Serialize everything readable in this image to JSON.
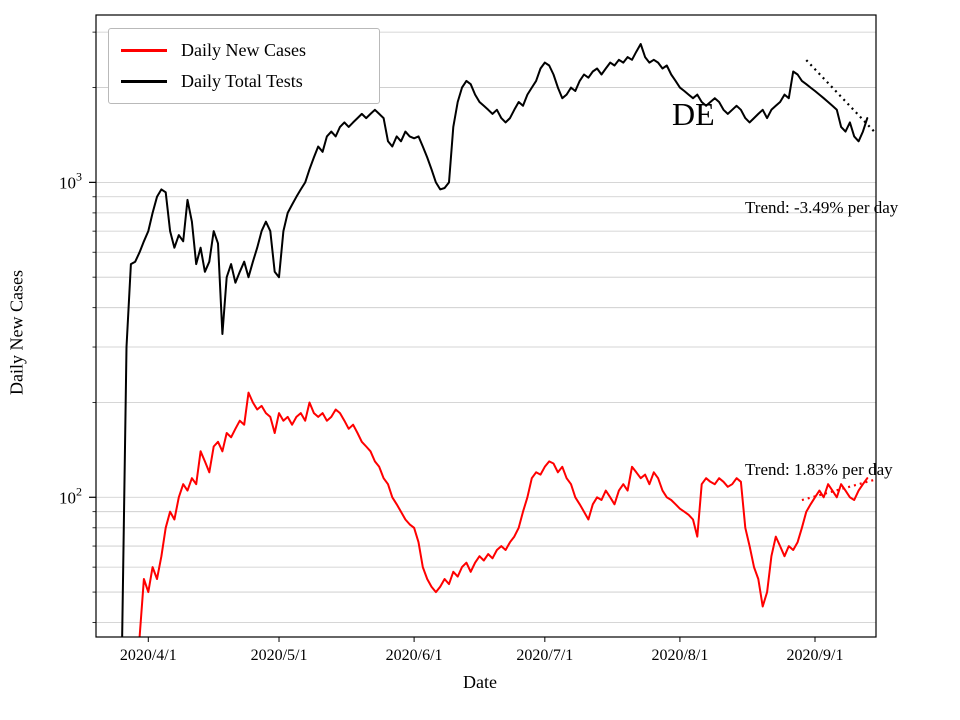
{
  "annotations": {
    "country_label": "DE",
    "trend_total_tests": "Trend: -3.49% per day",
    "trend_new_cases": "Trend: 1.83% per day"
  },
  "chart_data": {
    "type": "line",
    "title": "",
    "xlabel": "Date",
    "ylabel": "Daily New Cases",
    "yscale": "log",
    "ylim": [
      36,
      3400
    ],
    "x_range_days": [
      -6,
      173
    ],
    "x_start_date": "2020/3/26",
    "grid": "horizontal-only",
    "legend_position": "upper-left",
    "gridlines": [
      40,
      50,
      60,
      70,
      80,
      90,
      100,
      200,
      300,
      400,
      500,
      600,
      700,
      800,
      900,
      1000,
      2000,
      3000
    ],
    "y_ticks": [
      {
        "value": 1000,
        "base": "10",
        "exp": "3"
      },
      {
        "value": 100,
        "base": "10",
        "exp": "2"
      }
    ],
    "x_ticks": [
      {
        "day": 6,
        "label": "2020/4/1"
      },
      {
        "day": 36,
        "label": "2020/5/1"
      },
      {
        "day": 67,
        "label": "2020/6/1"
      },
      {
        "day": 97,
        "label": "2020/7/1"
      },
      {
        "day": 128,
        "label": "2020/8/1"
      },
      {
        "day": 159,
        "label": "2020/9/1"
      }
    ],
    "series": [
      {
        "name": "Daily New Cases",
        "color": "#ff0000",
        "start_day": 4,
        "values": [
          36,
          55,
          50,
          60,
          55,
          65,
          80,
          90,
          85,
          100,
          110,
          105,
          115,
          110,
          140,
          130,
          120,
          145,
          150,
          140,
          160,
          155,
          165,
          175,
          170,
          215,
          200,
          190,
          195,
          185,
          180,
          160,
          185,
          175,
          180,
          170,
          180,
          185,
          175,
          200,
          185,
          180,
          185,
          175,
          180,
          190,
          185,
          175,
          165,
          170,
          160,
          150,
          145,
          140,
          130,
          125,
          115,
          110,
          100,
          95,
          90,
          85,
          82,
          80,
          72,
          60,
          55,
          52,
          50,
          52,
          55,
          53,
          58,
          56,
          60,
          62,
          58,
          62,
          65,
          63,
          66,
          64,
          68,
          70,
          68,
          72,
          75,
          80,
          90,
          100,
          115,
          120,
          118,
          125,
          130,
          128,
          120,
          125,
          115,
          110,
          100,
          95,
          90,
          85,
          95,
          100,
          98,
          105,
          100,
          95,
          105,
          110,
          105,
          125,
          120,
          115,
          118,
          110,
          120,
          115,
          105,
          100,
          98,
          95,
          92,
          90,
          88,
          85,
          75,
          110,
          115,
          112,
          110,
          115,
          112,
          108,
          110,
          115,
          112,
          80,
          70,
          60,
          55,
          45,
          50,
          65,
          75,
          70,
          65,
          70,
          68,
          72,
          80,
          90,
          95,
          100,
          105,
          100,
          110,
          105,
          100,
          110,
          105,
          100,
          98,
          105,
          110,
          115
        ]
      },
      {
        "name": "Daily Total Tests",
        "color": "#000000",
        "start_day": 0,
        "values": [
          35,
          300,
          550,
          560,
          600,
          650,
          700,
          800,
          900,
          950,
          930,
          700,
          620,
          680,
          650,
          880,
          750,
          550,
          620,
          520,
          560,
          700,
          640,
          330,
          500,
          550,
          480,
          520,
          560,
          500,
          560,
          620,
          700,
          750,
          700,
          520,
          500,
          700,
          800,
          850,
          900,
          950,
          1000,
          1100,
          1200,
          1300,
          1250,
          1400,
          1450,
          1400,
          1500,
          1550,
          1500,
          1550,
          1600,
          1650,
          1600,
          1650,
          1700,
          1650,
          1600,
          1350,
          1300,
          1400,
          1350,
          1450,
          1400,
          1380,
          1400,
          1300,
          1200,
          1100,
          1000,
          950,
          960,
          1000,
          1500,
          1800,
          2000,
          2100,
          2050,
          1900,
          1800,
          1750,
          1700,
          1650,
          1700,
          1600,
          1550,
          1600,
          1700,
          1800,
          1750,
          1900,
          2000,
          2100,
          2300,
          2400,
          2350,
          2200,
          2000,
          1850,
          1900,
          2000,
          1950,
          2100,
          2200,
          2150,
          2250,
          2300,
          2200,
          2300,
          2400,
          2350,
          2450,
          2400,
          2500,
          2450,
          2600,
          2750,
          2500,
          2400,
          2450,
          2400,
          2300,
          2350,
          2200,
          2100,
          2000,
          1950,
          1900,
          1850,
          1900,
          1800,
          1750,
          1800,
          1850,
          1800,
          1700,
          1650,
          1700,
          1750,
          1700,
          1600,
          1550,
          1600,
          1650,
          1700,
          1600,
          1700,
          1750,
          1800,
          1900,
          1850,
          2250,
          2200,
          2100,
          2050,
          2000,
          1950,
          1900,
          1850,
          1800,
          1750,
          1700,
          1500,
          1450,
          1550,
          1400,
          1350,
          1450,
          1600
        ]
      }
    ],
    "trend_lines": [
      {
        "name": "total-tests-trend",
        "series": "Daily Total Tests",
        "color": "#000000",
        "style": "dotted",
        "start_day": 157,
        "start_value": 2445,
        "end_day": 173,
        "end_value": 1430,
        "rate_label": "Trend: -3.49% per day"
      },
      {
        "name": "new-cases-trend",
        "series": "Daily New Cases",
        "color": "#ff0000",
        "style": "dotted",
        "start_day": 156,
        "start_value": 98,
        "end_day": 173,
        "end_value": 114,
        "rate_label": "Trend: 1.83% per day"
      }
    ]
  }
}
